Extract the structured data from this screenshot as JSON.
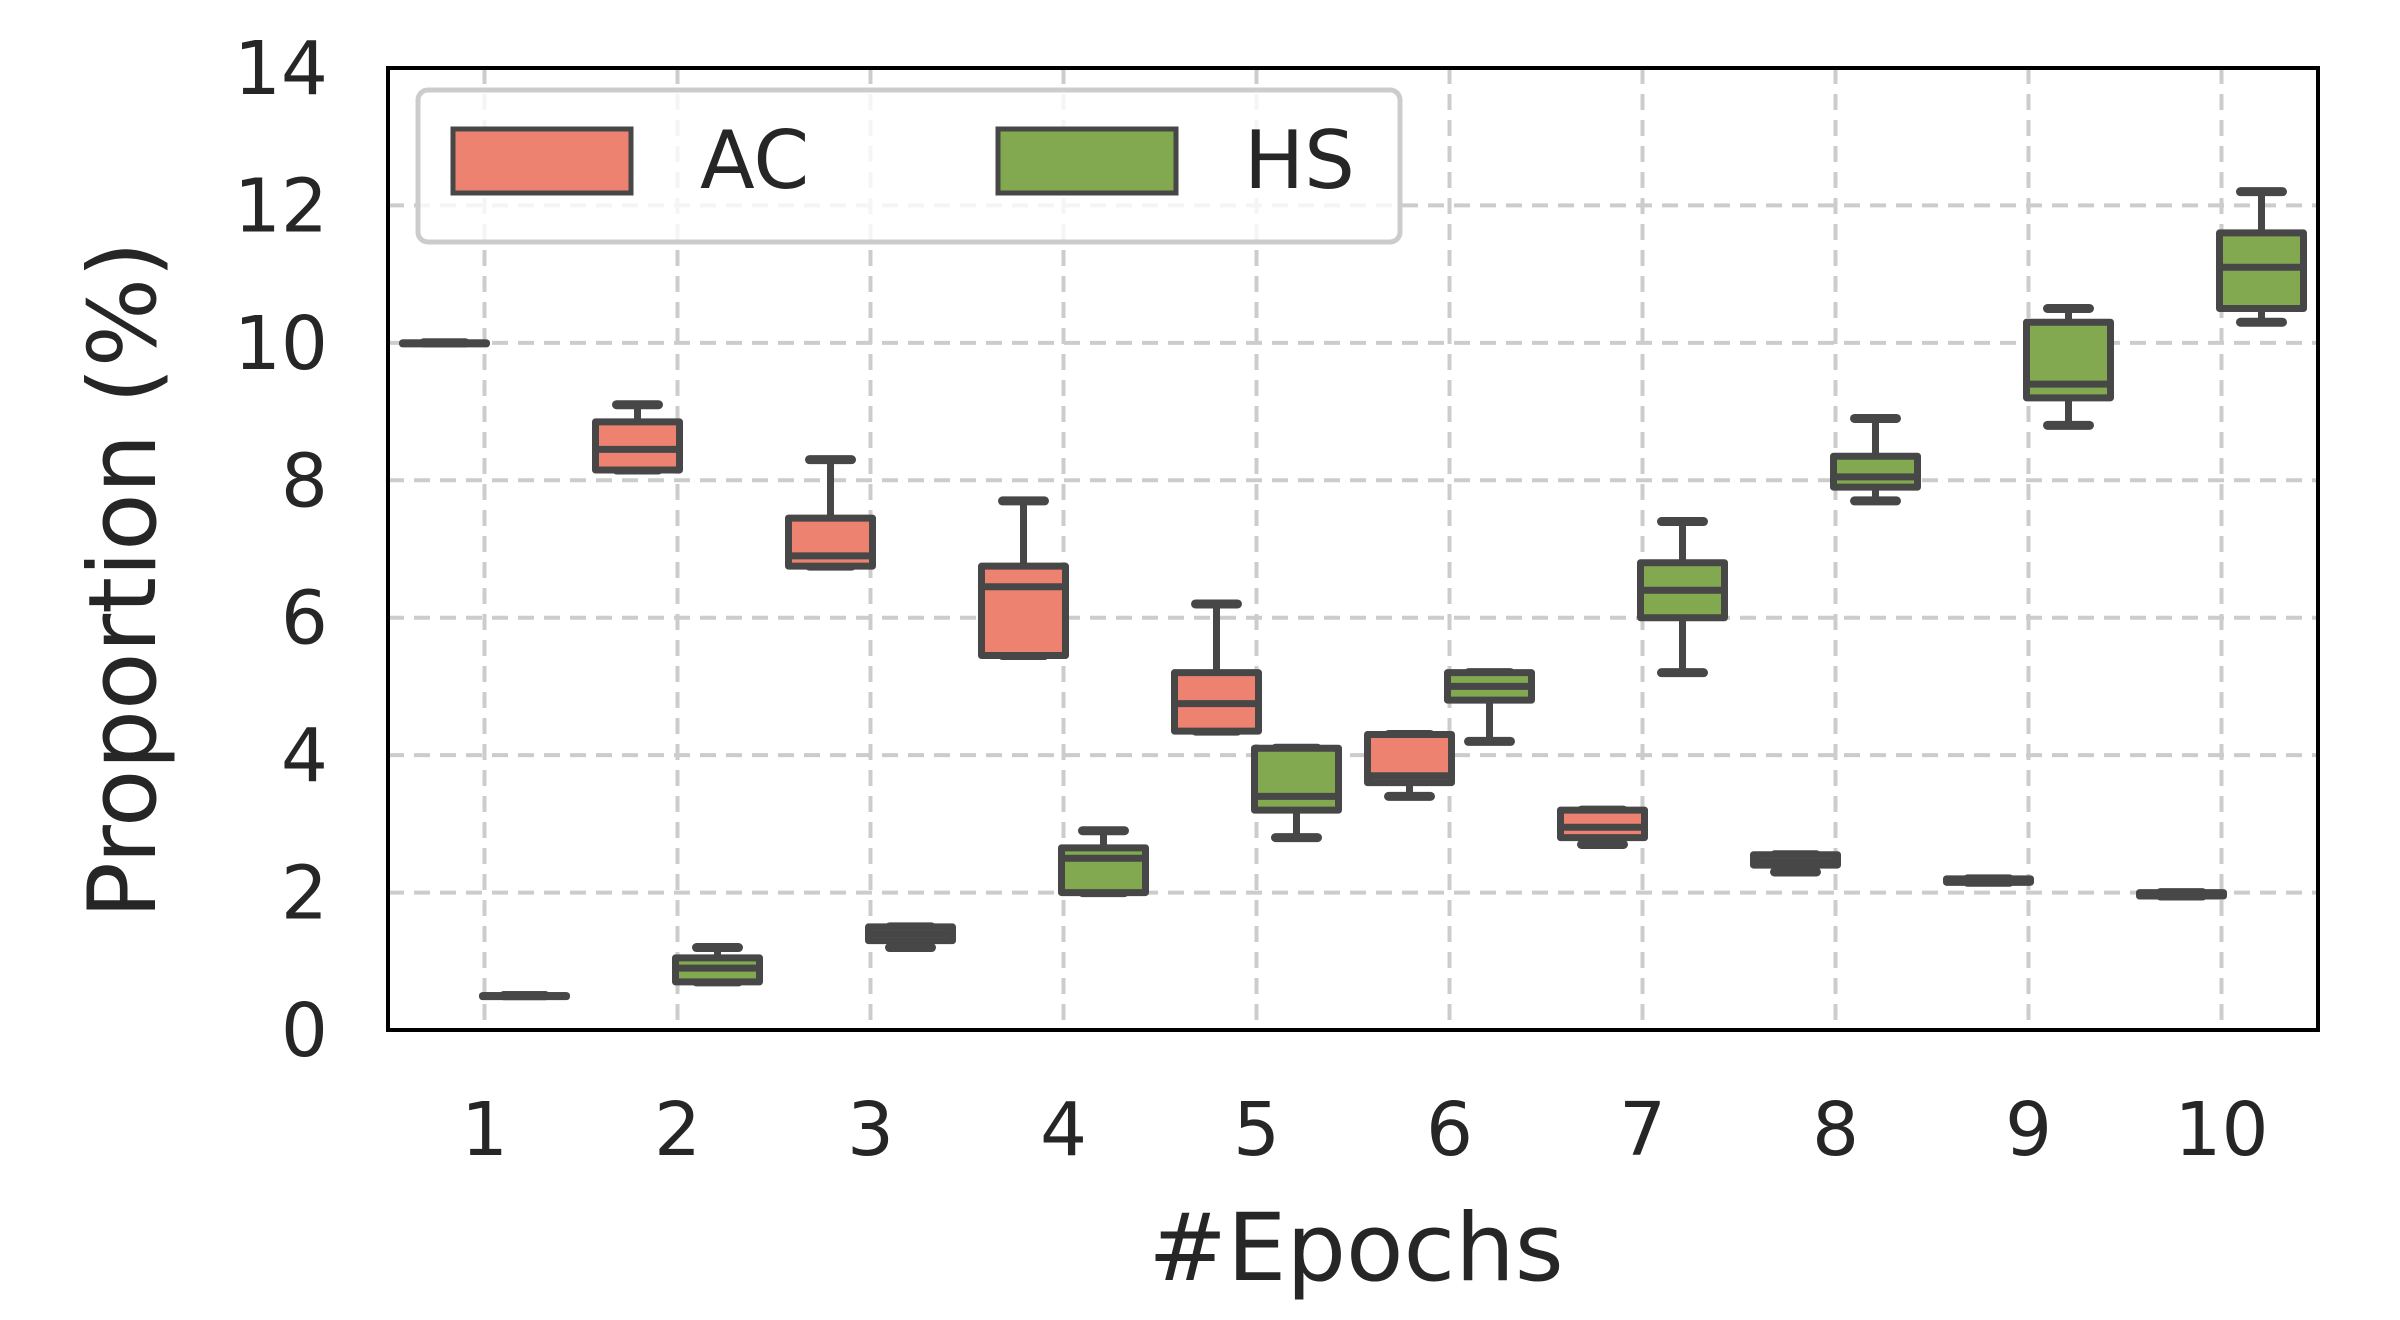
{
  "chart_data": {
    "type": "box",
    "title": "",
    "xlabel": "#Epochs",
    "ylabel": "Proportion (%)",
    "ylim": [
      0,
      14
    ],
    "categories": [
      "1",
      "2",
      "3",
      "4",
      "5",
      "6",
      "7",
      "8",
      "9",
      "10"
    ],
    "yticks": [
      "0",
      "2",
      "4",
      "6",
      "8",
      "10",
      "12",
      "14"
    ],
    "grid": true,
    "legend_position": "top-left",
    "series": [
      {
        "name": "AC",
        "color": "#EE8270",
        "boxes": [
          {
            "whislo": 10.0,
            "q1": 10.0,
            "med": 10.0,
            "q3": 10.0,
            "whishi": 10.0
          },
          {
            "whislo": 8.15,
            "q1": 8.15,
            "med": 8.45,
            "q3": 8.85,
            "whishi": 9.1
          },
          {
            "whislo": 6.75,
            "q1": 6.75,
            "med": 6.9,
            "q3": 7.45,
            "whishi": 8.3
          },
          {
            "whislo": 5.45,
            "q1": 5.45,
            "med": 6.45,
            "q3": 6.75,
            "whishi": 7.7
          },
          {
            "whislo": 4.35,
            "q1": 4.35,
            "med": 4.75,
            "q3": 5.2,
            "whishi": 6.2
          },
          {
            "whislo": 3.4,
            "q1": 3.6,
            "med": 3.7,
            "q3": 4.3,
            "whishi": 4.3
          },
          {
            "whislo": 2.7,
            "q1": 2.8,
            "med": 2.95,
            "q3": 3.2,
            "whishi": 3.2
          },
          {
            "whislo": 2.3,
            "q1": 2.4,
            "med": 2.45,
            "q3": 2.55,
            "whishi": 2.55
          },
          {
            "whislo": 2.15,
            "q1": 2.15,
            "med": 2.15,
            "q3": 2.2,
            "whishi": 2.2
          },
          {
            "whislo": 1.95,
            "q1": 1.95,
            "med": 1.95,
            "q3": 2.0,
            "whishi": 2.0
          }
        ]
      },
      {
        "name": "HS",
        "color": "#82A850",
        "boxes": [
          {
            "whislo": 0.5,
            "q1": 0.5,
            "med": 0.5,
            "q3": 0.5,
            "whishi": 0.5
          },
          {
            "whislo": 0.7,
            "q1": 0.7,
            "med": 0.9,
            "q3": 1.05,
            "whishi": 1.2
          },
          {
            "whislo": 1.2,
            "q1": 1.3,
            "med": 1.4,
            "q3": 1.5,
            "whishi": 1.5
          },
          {
            "whislo": 2.0,
            "q1": 2.0,
            "med": 2.5,
            "q3": 2.65,
            "whishi": 2.9
          },
          {
            "whislo": 2.8,
            "q1": 3.2,
            "med": 3.4,
            "q3": 4.1,
            "whishi": 4.1
          },
          {
            "whislo": 4.2,
            "q1": 4.8,
            "med": 5.0,
            "q3": 5.2,
            "whishi": 5.2
          },
          {
            "whislo": 5.2,
            "q1": 6.0,
            "med": 6.4,
            "q3": 6.8,
            "whishi": 7.4
          },
          {
            "whislo": 7.7,
            "q1": 7.9,
            "med": 8.05,
            "q3": 8.35,
            "whishi": 8.9
          },
          {
            "whislo": 8.8,
            "q1": 9.2,
            "med": 9.4,
            "q3": 10.3,
            "whishi": 10.5
          },
          {
            "whislo": 10.3,
            "q1": 10.5,
            "med": 11.1,
            "q3": 11.6,
            "whishi": 12.2
          }
        ]
      }
    ]
  }
}
